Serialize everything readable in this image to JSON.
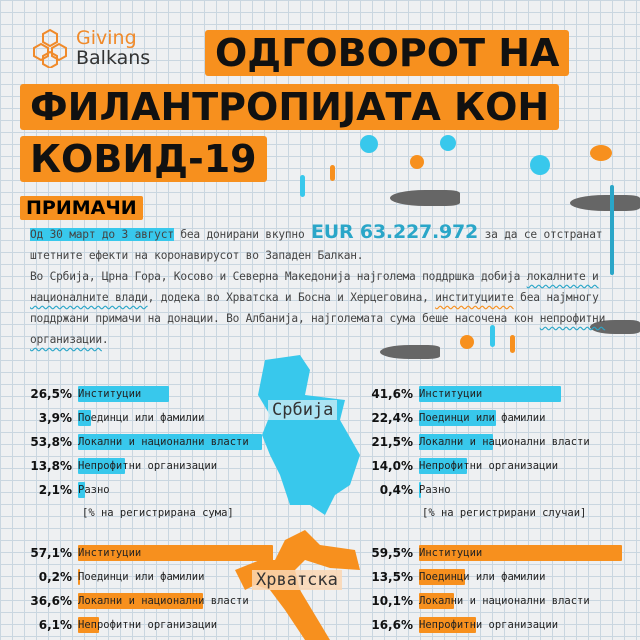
{
  "logo": {
    "line1": "Giving",
    "line2": "Balkans"
  },
  "title": {
    "line1": "ОДГОВОРОТ НА",
    "line2": "ФИЛАНТРОПИЈАТА КОН",
    "line3": "КОВИД-19"
  },
  "section": "ПРИМАЧИ",
  "intro": {
    "period": "Од 30 март до 3 август",
    "p1a": " беа донирани вкупно ",
    "amount": "EUR 63.227.972",
    "p1b": " за да се отстранат штетните ефекти на коронавирусот во Западен Балкан.",
    "p2a": "Во Србија, Црна Гора, Косово и Северна Македонија најголема поддршка добија ",
    "p2b": "локалните и националните влади",
    "p2c": ", додека во Хрватска и Босна и Херцеговина, ",
    "p2d": "институциите",
    "p2e": " беа најмногу поддржани примачи на донации. Во Албанија, најголемата сума беше насочена кон ",
    "p2f": "непрофитни организации",
    "p2g": "."
  },
  "colors": {
    "serbia": "#38c8ec",
    "croatia": "#f7901e"
  },
  "chart_data": [
    {
      "type": "bar",
      "country": "Србија",
      "measure": "[% на регистрирана сума]",
      "categories": [
        "Институции",
        "Поединци или фамилии",
        "Локални и национални власти",
        "Непрофитни организации",
        "Разно"
      ],
      "values": [
        26.5,
        3.9,
        53.8,
        13.8,
        2.1
      ],
      "labels": [
        "26,5%",
        "3,9%",
        "53,8%",
        "13,8%",
        "2,1%"
      ]
    },
    {
      "type": "bar",
      "country": "Србија",
      "measure": "[% на регистрирани случаи]",
      "categories": [
        "Институции",
        "Поединци или фамилии",
        "Локални и национални власти",
        "Непрофитни организации",
        "Разно"
      ],
      "values": [
        41.6,
        22.4,
        21.5,
        14.0,
        0.4
      ],
      "labels": [
        "41,6%",
        "22,4%",
        "21,5%",
        "14,0%",
        "0,4%"
      ]
    },
    {
      "type": "bar",
      "country": "Хрватска",
      "categories": [
        "Институции",
        "Поединци или фамилии",
        "Локални и национални власти",
        "Непрофитни организации"
      ],
      "values": [
        57.1,
        0.2,
        36.6,
        6.1
      ],
      "labels": [
        "57,1%",
        "0,2%",
        "36,6%",
        "6,1%"
      ]
    },
    {
      "type": "bar",
      "country": "Хрватска",
      "categories": [
        "Институции",
        "Поединци или фамилии",
        "Локални и национални власти",
        "Непрофитни организации"
      ],
      "values": [
        59.5,
        13.5,
        10.1,
        16.6
      ],
      "labels": [
        "59,5%",
        "13,5%",
        "10,1%",
        "16,6%"
      ]
    }
  ]
}
